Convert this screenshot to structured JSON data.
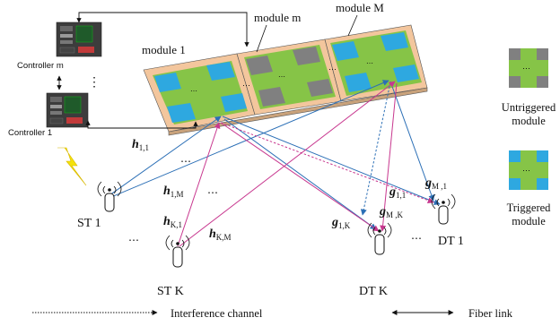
{
  "labels": {
    "module_1": "module 1",
    "module_m": "module m",
    "module_M": "module M",
    "controller_m": "Controller m",
    "controller_1": "Controller 1",
    "vertical_dots": "⋮",
    "st_1": "ST 1",
    "st_K": "ST K",
    "dt_1": "DT 1",
    "dt_K": "DT K",
    "dots": "⋯",
    "untriggered": "Untriggered module",
    "triggered": "Triggered module",
    "legend_interference": "Interference channel",
    "legend_fiber": "Fiber link"
  },
  "channels": {
    "h_1_1": {
      "base": "h",
      "sub": "1,1"
    },
    "h_1_M": {
      "base": "h",
      "sub": "1,M"
    },
    "h_K_1": {
      "base": "h",
      "sub": "K,1"
    },
    "h_K_M": {
      "base": "h",
      "sub": "K,M"
    },
    "g_M_1": {
      "base": "g",
      "sub": "M ,1"
    },
    "g_1_1": {
      "base": "g",
      "sub": "1,1"
    },
    "g_M_K": {
      "base": "g",
      "sub": "M ,K"
    },
    "g_1_K": {
      "base": "g",
      "sub": "1,K"
    }
  },
  "colors": {
    "st1_path": "#2b6fb6",
    "stK_path": "#c8388f",
    "module_green": "#86c447",
    "module_tan": "#f3c69d",
    "tile_blue": "#2ea8e0",
    "tile_gray": "#808080",
    "lightning": "#f4e20c"
  }
}
